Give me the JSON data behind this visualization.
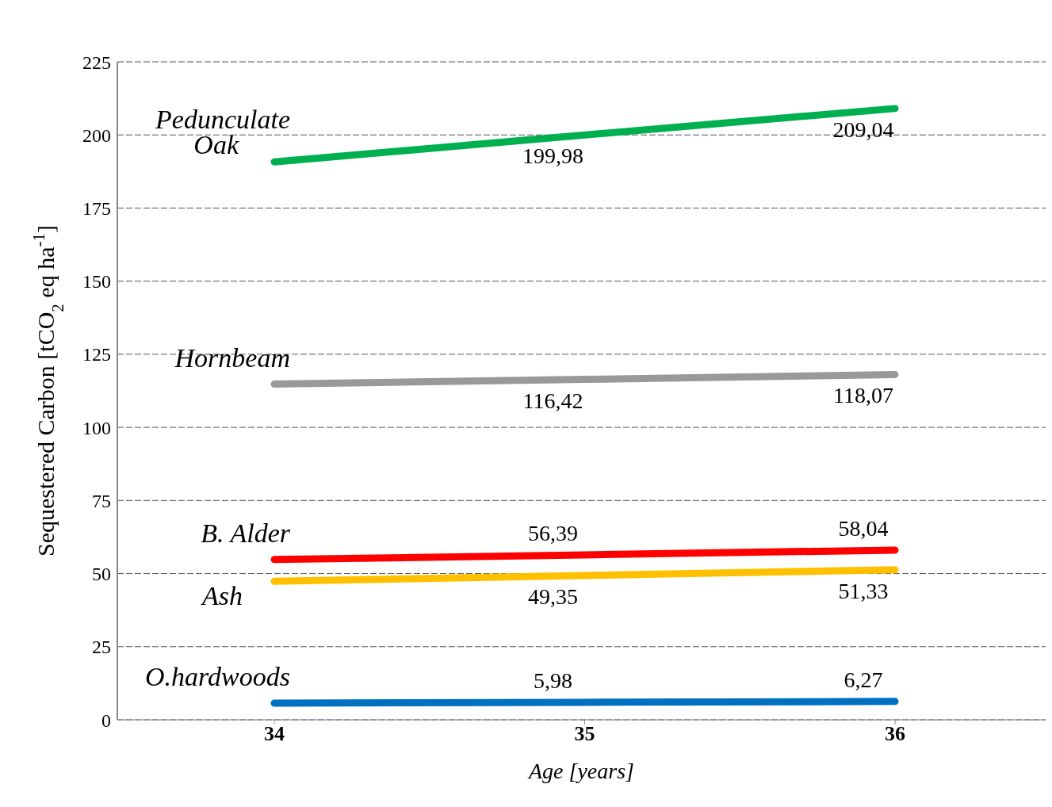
{
  "chart_data": {
    "type": "line",
    "xlabel": "Age [years]",
    "ylabel": "Sequestered Carbon [tCO$_{2}$ eq ha$^{-1}$]",
    "categories": [
      "34",
      "35",
      "36"
    ],
    "ylim": [
      0,
      225
    ],
    "yticks": [
      0,
      25,
      50,
      75,
      100,
      125,
      150,
      175,
      200,
      225
    ],
    "grid": "y",
    "legend": false,
    "marker": "none",
    "line_style": "solid",
    "series": [
      {
        "name": "Pedunculate Oak",
        "color": "#00b050",
        "values": [
          190.8,
          199.98,
          209.04
        ],
        "value_labels": [
          null,
          "199,98",
          "209,04"
        ]
      },
      {
        "name": "Hornbeam",
        "color": "#999999",
        "values": [
          114.8,
          116.42,
          118.07
        ],
        "value_labels": [
          null,
          "116,42",
          "118,07"
        ]
      },
      {
        "name": "B. Alder",
        "color": "#ff0000",
        "values": [
          54.8,
          56.39,
          58.04
        ],
        "value_labels": [
          null,
          "56,39",
          "58,04"
        ]
      },
      {
        "name": "Ash",
        "color": "#ffc000",
        "values": [
          47.4,
          49.35,
          51.33
        ],
        "value_labels": [
          null,
          "49,35",
          "51,33"
        ]
      },
      {
        "name": "O.hardwoods",
        "color": "#0070c0",
        "values": [
          5.7,
          5.98,
          6.27
        ],
        "value_labels": [
          null,
          "5,98",
          "6,27"
        ]
      }
    ]
  }
}
